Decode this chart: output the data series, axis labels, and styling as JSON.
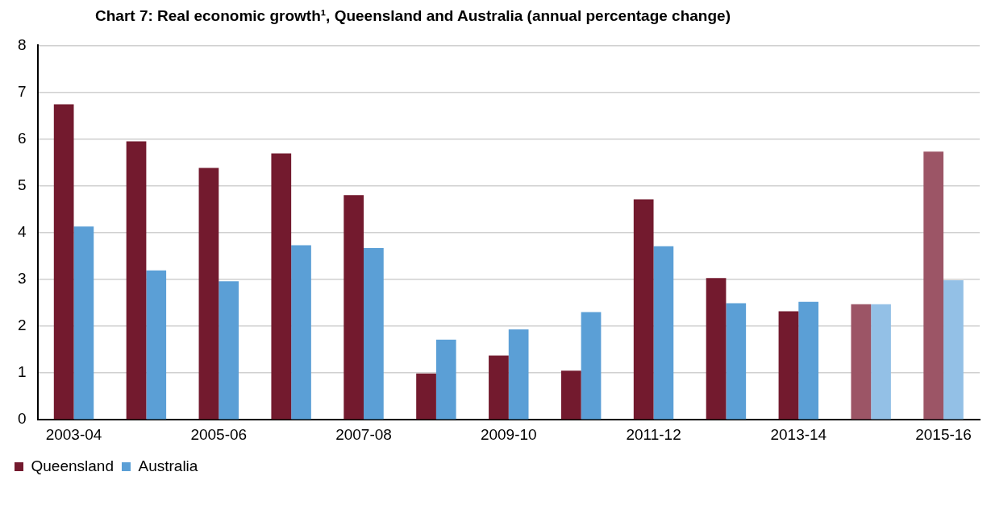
{
  "chart_data": {
    "type": "bar",
    "title": "Chart 7: Real economic growth¹, Queensland and Australia (annual percentage change)",
    "categories": [
      "2003-04",
      null,
      "2005-06",
      null,
      "2007-08",
      null,
      "2009-10",
      null,
      "2011-12",
      null,
      "2013-14",
      null,
      "2015-16"
    ],
    "series": [
      {
        "name": "Queensland",
        "color": "#731a2e",
        "colors": [
          "#731a2e",
          "#731a2e",
          "#731a2e",
          "#731a2e",
          "#731a2e",
          "#731a2e",
          "#731a2e",
          "#731a2e",
          "#731a2e",
          "#731a2e",
          "#731a2e",
          "#9c5566",
          "#9c5566"
        ],
        "values": [
          6.74,
          5.95,
          5.38,
          5.69,
          4.8,
          0.99,
          1.37,
          1.05,
          4.71,
          3.03,
          2.32,
          2.47,
          5.73
        ]
      },
      {
        "name": "Australia",
        "color": "#5b9fd6",
        "colors": [
          "#5b9fd6",
          "#5b9fd6",
          "#5b9fd6",
          "#5b9fd6",
          "#5b9fd6",
          "#5b9fd6",
          "#5b9fd6",
          "#5b9fd6",
          "#5b9fd6",
          "#5b9fd6",
          "#5b9fd6",
          "#93c0e6",
          "#93c0e6"
        ],
        "values": [
          4.13,
          3.19,
          2.96,
          3.73,
          3.67,
          1.71,
          1.93,
          2.3,
          3.71,
          2.49,
          2.52,
          2.47,
          2.98
        ]
      }
    ],
    "ylim": [
      0,
      8
    ],
    "yticks": [
      0,
      1,
      2,
      3,
      4,
      5,
      6,
      7,
      8
    ],
    "grid": "y",
    "legend": "bottom left"
  }
}
